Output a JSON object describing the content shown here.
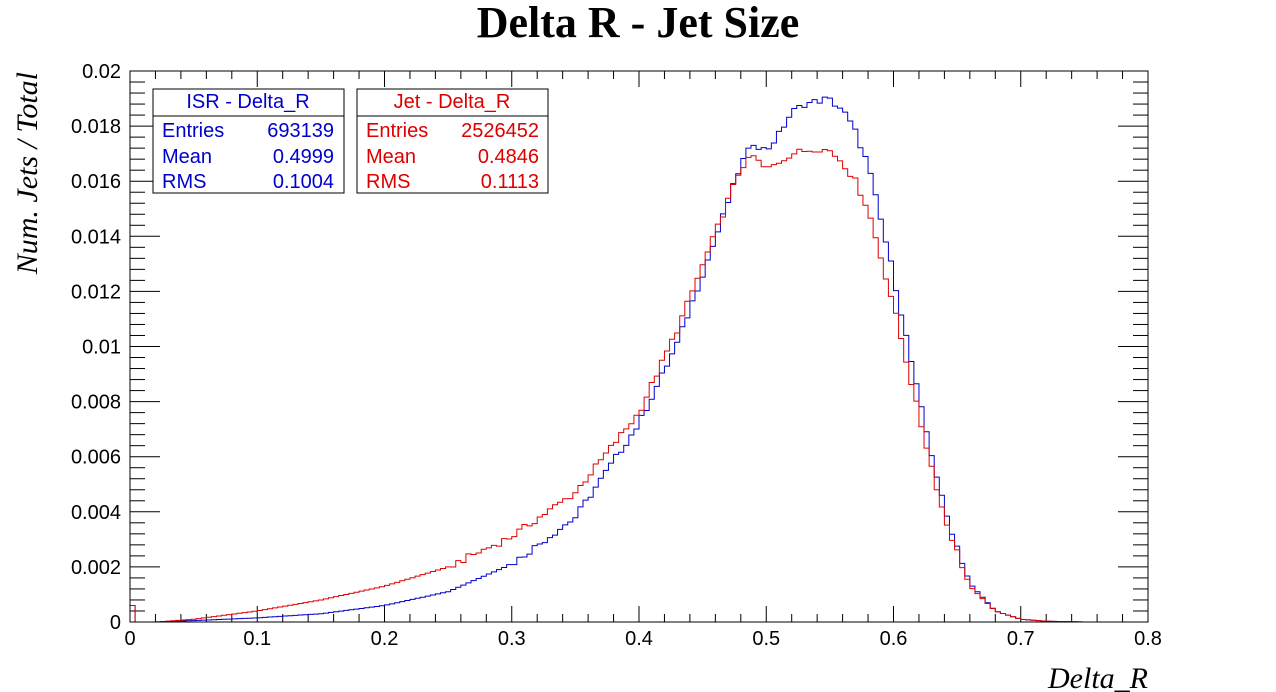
{
  "chart_data": {
    "type": "histogram",
    "title": "Delta R - Jet Size",
    "xlabel": "Delta_R",
    "ylabel": "Num. Jets / Total",
    "xlim": [
      0,
      0.8
    ],
    "ylim": [
      0,
      0.02
    ],
    "x_ticks": [
      "0",
      "0.1",
      "0.2",
      "0.3",
      "0.4",
      "0.5",
      "0.6",
      "0.7",
      "0.8"
    ],
    "y_ticks": [
      "0",
      "0.002",
      "0.004",
      "0.006",
      "0.008",
      "0.01",
      "0.012",
      "0.014",
      "0.016",
      "0.018",
      "0.02"
    ],
    "bin_width": 0.004,
    "series": [
      {
        "name": "ISR - Delta_R",
        "color": "#0000cc",
        "x": [
          0,
          0.02,
          0.05,
          0.1,
          0.15,
          0.2,
          0.25,
          0.3,
          0.35,
          0.4,
          0.43,
          0.46,
          0.48,
          0.49,
          0.5,
          0.51,
          0.52,
          0.53,
          0.54,
          0.548,
          0.56,
          0.57,
          0.58,
          0.6,
          0.62,
          0.64,
          0.66,
          0.68,
          0.7,
          0.72,
          0.75,
          0.8
        ],
        "y": [
          0.0006,
          0.0,
          5e-05,
          0.00015,
          0.0003,
          0.0006,
          0.0011,
          0.0021,
          0.0038,
          0.0072,
          0.0101,
          0.0139,
          0.0166,
          0.0174,
          0.0171,
          0.0177,
          0.0185,
          0.0188,
          0.0189,
          0.019,
          0.0186,
          0.0178,
          0.0166,
          0.0126,
          0.0081,
          0.0041,
          0.0014,
          0.0004,
          0.0001,
          3e-05,
          0.0,
          0.0
        ]
      },
      {
        "name": "Jet - Delta_R",
        "color": "#dd0000",
        "x": [
          0,
          0.02,
          0.05,
          0.1,
          0.15,
          0.2,
          0.25,
          0.3,
          0.35,
          0.4,
          0.43,
          0.46,
          0.48,
          0.49,
          0.5,
          0.51,
          0.52,
          0.53,
          0.54,
          0.55,
          0.56,
          0.57,
          0.58,
          0.6,
          0.62,
          0.64,
          0.66,
          0.68,
          0.7,
          0.72,
          0.75,
          0.8
        ],
        "y": [
          0.0006,
          0.0,
          0.0001,
          0.0004,
          0.0008,
          0.0013,
          0.002,
          0.0031,
          0.0047,
          0.0076,
          0.0106,
          0.0141,
          0.0165,
          0.0169,
          0.0164,
          0.0167,
          0.017,
          0.0171,
          0.0172,
          0.0171,
          0.0167,
          0.016,
          0.015,
          0.0115,
          0.0075,
          0.0038,
          0.0013,
          0.0004,
          0.0001,
          3e-05,
          0.0,
          0.0
        ]
      }
    ]
  },
  "stats": [
    {
      "title": "ISR - Delta_R",
      "color": "#0000cc",
      "rows": [
        {
          "label": "Entries",
          "value": "693139"
        },
        {
          "label": "Mean",
          "value": "0.4999"
        },
        {
          "label": "RMS",
          "value": "0.1004"
        }
      ]
    },
    {
      "title": "Jet - Delta_R",
      "color": "#dd0000",
      "rows": [
        {
          "label": "Entries",
          "value": "2526452"
        },
        {
          "label": "Mean",
          "value": "0.4846"
        },
        {
          "label": "RMS",
          "value": "0.1113"
        }
      ]
    }
  ]
}
